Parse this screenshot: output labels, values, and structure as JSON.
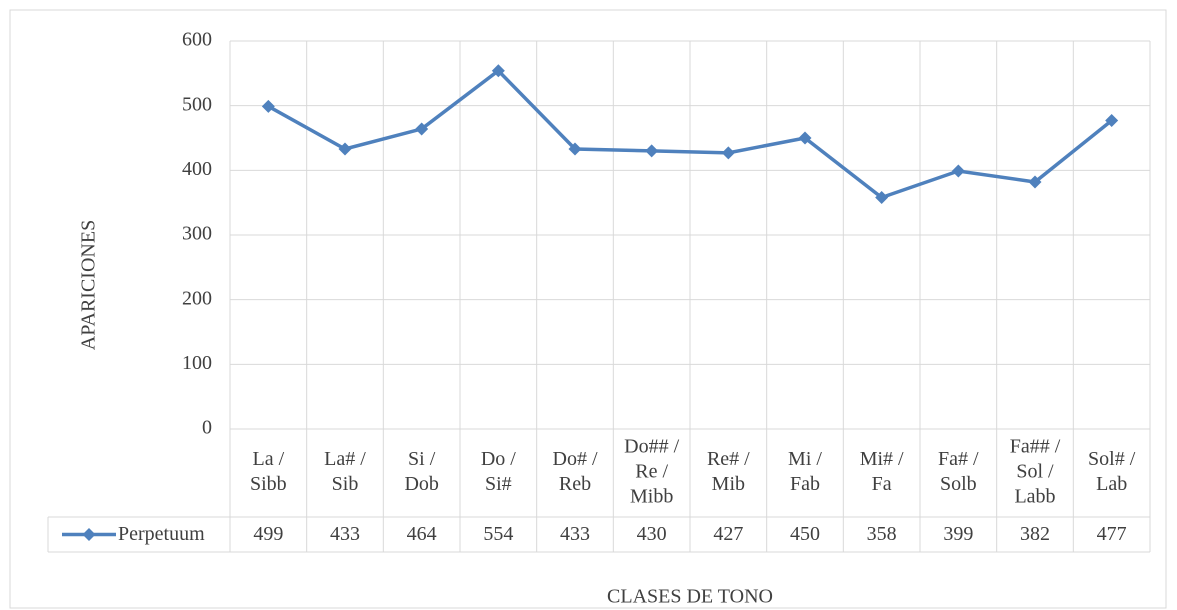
{
  "chart_data": {
    "type": "line",
    "y_label": "APARICIONES",
    "x_label": "CLASES DE TONO",
    "categories": [
      [
        "La /",
        "Sibb"
      ],
      [
        "La# /",
        "Sib"
      ],
      [
        "Si /",
        "Dob"
      ],
      [
        "Do /",
        "Si#"
      ],
      [
        "Do# /",
        "Reb"
      ],
      [
        "Do## /",
        "Re /",
        "Mibb"
      ],
      [
        "Re# /",
        "Mib"
      ],
      [
        "Mi /",
        "Fab"
      ],
      [
        "Mi# /",
        "Fa"
      ],
      [
        "Fa# /",
        "Solb"
      ],
      [
        "Fa## /",
        "Sol /",
        "Labb"
      ],
      [
        "Sol# /",
        "Lab"
      ]
    ],
    "series": [
      {
        "name": "Perpetuum",
        "color": "#4f81bd",
        "values": [
          499,
          433,
          464,
          554,
          433,
          430,
          427,
          450,
          358,
          399,
          382,
          477
        ]
      }
    ],
    "ylim": [
      0,
      600
    ],
    "yticks": [
      0,
      100,
      200,
      300,
      400,
      500,
      600
    ],
    "grid": true,
    "data_table": true
  }
}
